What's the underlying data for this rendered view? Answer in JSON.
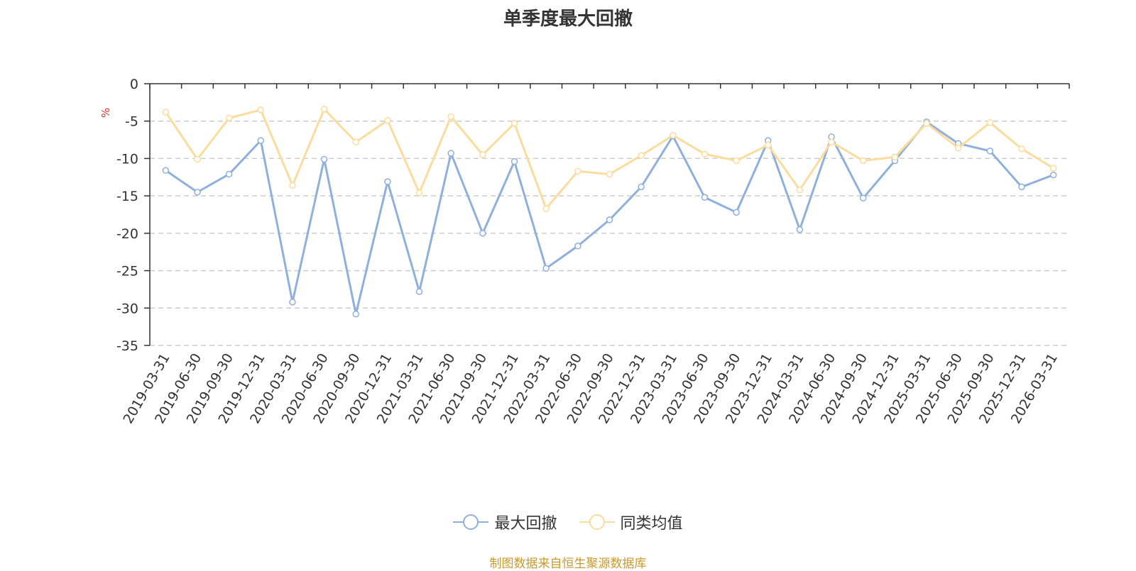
{
  "chart_data": {
    "type": "line",
    "title": "单季度最大回撤",
    "ylabel": "%",
    "ylim": [
      -35,
      0
    ],
    "yticks": [
      0,
      -5,
      -10,
      -15,
      -20,
      -25,
      -30,
      -35
    ],
    "grid": true,
    "legend_position": "bottom",
    "categories": [
      "2019-03-31",
      "2019-06-30",
      "2019-09-30",
      "2019-12-31",
      "2020-03-31",
      "2020-06-30",
      "2020-09-30",
      "2020-12-31",
      "2021-03-31",
      "2021-06-30",
      "2021-09-30",
      "2021-12-31",
      "2022-03-31",
      "2022-06-30",
      "2022-09-30",
      "2022-12-31",
      "2023-03-31",
      "2023-06-30",
      "2023-09-30",
      "2023-12-31",
      "2024-03-31",
      "2024-06-30",
      "2024-09-30",
      "2024-12-31",
      "2025-03-31",
      "2025-06-30",
      "2025-09-30",
      "2025-12-31",
      "2026-03-31"
    ],
    "series": [
      {
        "name": "最大回撤",
        "color": "#8fb0dc",
        "values": [
          -11.6,
          -14.5,
          -12.1,
          -7.6,
          -29.2,
          -10.1,
          -30.8,
          -13.1,
          -27.8,
          -9.3,
          -20.0,
          -10.4,
          -24.7,
          -21.7,
          -18.2,
          -13.8,
          -7.0,
          -15.2,
          -17.2,
          -7.6,
          -19.5,
          -7.1,
          -15.3,
          -10.3,
          -5.1,
          -8.0,
          -9.0,
          -13.8,
          -12.2
        ]
      },
      {
        "name": "同类均值",
        "color": "#fcdc9c",
        "values": [
          -3.8,
          -10.1,
          -4.6,
          -3.5,
          -13.6,
          -3.4,
          -7.8,
          -4.9,
          -14.6,
          -4.4,
          -9.5,
          -5.3,
          -16.7,
          -11.7,
          -12.1,
          -9.6,
          -6.9,
          -9.4,
          -10.3,
          -8.2,
          -14.2,
          -7.8,
          -10.3,
          -9.8,
          -5.3,
          -8.6,
          -5.2,
          -8.7,
          -11.3
        ]
      }
    ]
  },
  "footer": {
    "source_note": "制图数据来自恒生聚源数据库",
    "source_color": "#c89a2c"
  }
}
